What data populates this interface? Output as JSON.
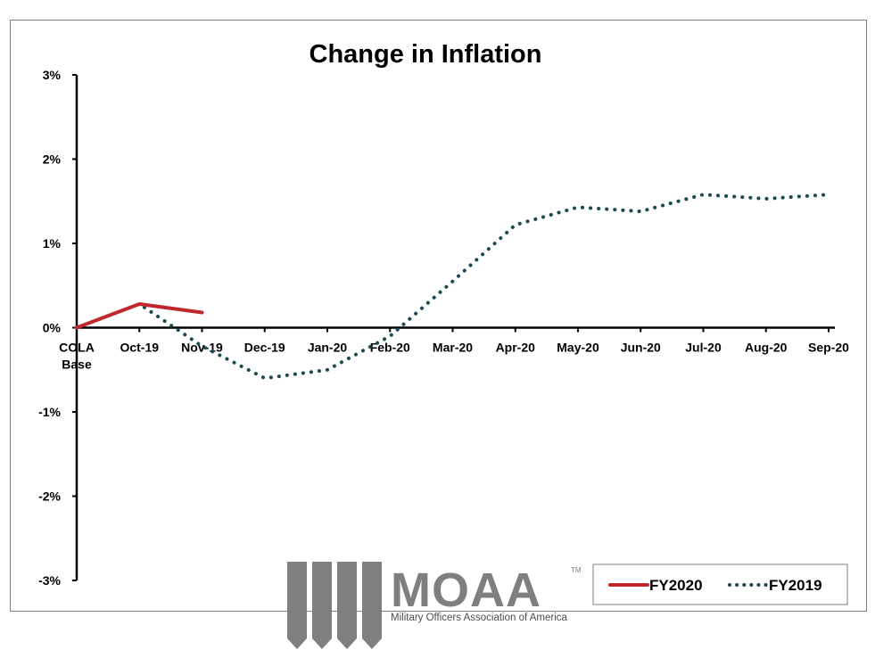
{
  "chart_data": {
    "type": "line",
    "title": "Change in Inflation",
    "categories": [
      [
        "COLA",
        "Base"
      ],
      [
        "Oct-19"
      ],
      [
        "Nov-19"
      ],
      [
        "Dec-19"
      ],
      [
        "Jan-20"
      ],
      [
        "Feb-20"
      ],
      [
        "Mar-20"
      ],
      [
        "Apr-20"
      ],
      [
        "May-20"
      ],
      [
        "Jun-20"
      ],
      [
        "Jul-20"
      ],
      [
        "Aug-20"
      ],
      [
        "Sep-20"
      ]
    ],
    "ylim": [
      -3,
      3
    ],
    "yticks": [
      3,
      2,
      1,
      0,
      -1,
      -2,
      -3
    ],
    "ytick_labels": [
      "3%",
      "2%",
      "1%",
      "0%",
      "-1%",
      "-2%",
      "-3%"
    ],
    "grid": false,
    "legend_position": "bottom-right",
    "series": [
      {
        "name": "FY2020",
        "color": "#c0282d",
        "style": "solid",
        "values": [
          0.0,
          0.28,
          0.18,
          null,
          null,
          null,
          null,
          null,
          null,
          null,
          null,
          null,
          null
        ]
      },
      {
        "name": "FY2019",
        "color": "#1b4a52",
        "style": "dotted",
        "values": [
          0.0,
          0.28,
          -0.22,
          -0.6,
          -0.5,
          -0.1,
          0.55,
          1.22,
          1.43,
          1.38,
          1.58,
          1.53,
          1.58
        ]
      }
    ]
  },
  "logo": {
    "name": "MOAA",
    "tagline": "Military Officers Association of America",
    "trademark": "TM",
    "color": "#7f7f7f"
  }
}
